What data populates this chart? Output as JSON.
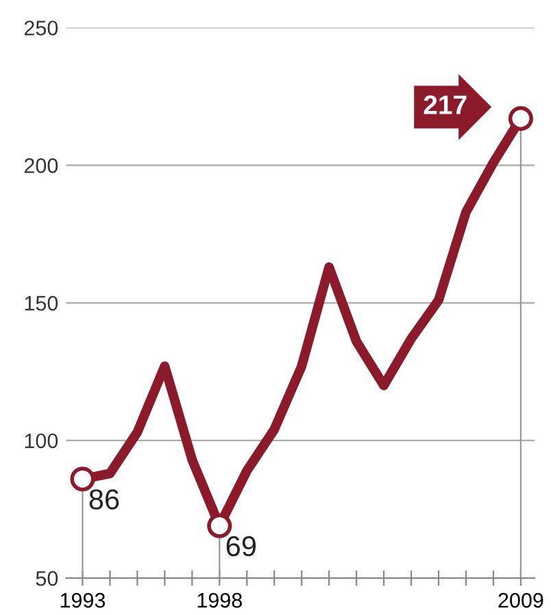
{
  "chart_data": {
    "type": "line",
    "x": [
      1993,
      1994,
      1995,
      1996,
      1997,
      1998,
      1999,
      2000,
      2001,
      2002,
      2003,
      2004,
      2005,
      2006,
      2007,
      2008,
      2009
    ],
    "series": [
      {
        "color": "#8b1a2b",
        "values": [
          86,
          88,
          103,
          127,
          93,
          69,
          89,
          104,
          127,
          163,
          136,
          120,
          137,
          151,
          183,
          201,
          217
        ],
        "value_labels": [
          "86",
          null,
          null,
          null,
          null,
          "69",
          null,
          null,
          null,
          null,
          null,
          null,
          null,
          null,
          null,
          null,
          "217"
        ]
      }
    ],
    "xlim": [
      1992.4,
      2009.5
    ],
    "xticks": [
      1993,
      {
        "value": 1994,
        "label": null
      },
      {
        "value": 1995,
        "label": null
      },
      {
        "value": 1996,
        "label": null
      },
      {
        "value": 1997,
        "label": null
      },
      1998,
      {
        "value": 1999,
        "label": null
      },
      {
        "value": 2000,
        "label": null
      },
      {
        "value": 2001,
        "label": null
      },
      {
        "value": 2002,
        "label": null
      },
      {
        "value": 2003,
        "label": null
      },
      {
        "value": 2004,
        "label": null
      },
      {
        "value": 2005,
        "label": null
      },
      {
        "value": 2006,
        "label": null
      },
      {
        "value": 2007,
        "label": null
      },
      {
        "value": 2008,
        "label": null
      },
      2009
    ],
    "ylim": [
      50,
      250
    ],
    "yticks": [
      50,
      100,
      150,
      200,
      250
    ],
    "ref_lines": [
      {
        "axis": "x",
        "value": 1993,
        "color": "#999999"
      },
      {
        "axis": "x",
        "value": 1998,
        "color": "#999999"
      },
      {
        "axis": "x",
        "value": 2009,
        "color": "#999999"
      }
    ],
    "grid": "y",
    "line_style": "solid"
  }
}
